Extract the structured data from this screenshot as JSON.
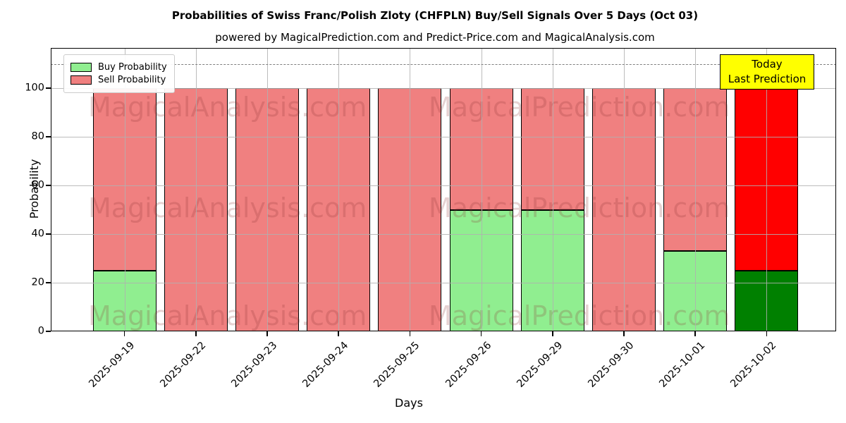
{
  "title": "Probabilities of Swiss Franc/Polish Zloty (CHFPLN) Buy/Sell Signals Over 5 Days (Oct 03)",
  "subtitle": "powered by MagicalPrediction.com and Predict-Price.com and MagicalAnalysis.com",
  "legend": {
    "buy_label": "Buy Probability",
    "sell_label": "Sell Probability"
  },
  "annotation": {
    "line1": "Today",
    "line2": "Last Prediction",
    "bg_color": "#ffff00"
  },
  "watermarks": {
    "left_text": "MagicalAnalysis.com",
    "right_text": "MagicalPrediction.com"
  },
  "colors": {
    "buy": "#90ee90",
    "sell": "#f08080",
    "buy_today": "#008000",
    "sell_today": "#ff0000",
    "grid": "#b0b0b0",
    "dashed_line": "#7f7f7f",
    "annotation_bg": "#ffff00"
  },
  "chart_data": {
    "type": "bar",
    "stacked": true,
    "title": "Probabilities of Swiss Franc/Polish Zloty (CHFPLN) Buy/Sell Signals Over 5 Days (Oct 03)",
    "xlabel": "Days",
    "ylabel": "Probability",
    "categories": [
      "2025-09-19",
      "2025-09-22",
      "2025-09-23",
      "2025-09-24",
      "2025-09-25",
      "2025-09-26",
      "2025-09-29",
      "2025-09-30",
      "2025-10-01",
      "2025-10-02"
    ],
    "series": [
      {
        "name": "Buy Probability",
        "color": "#90ee90",
        "today_color": "#008000",
        "values": [
          25,
          0,
          0,
          0,
          0,
          50,
          50,
          0,
          33,
          25
        ]
      },
      {
        "name": "Sell Probability",
        "color": "#f08080",
        "today_color": "#ff0000",
        "values": [
          75,
          100,
          100,
          100,
          100,
          50,
          50,
          100,
          67,
          75
        ]
      }
    ],
    "today_index": 9,
    "yticks": [
      0,
      20,
      40,
      60,
      80,
      100
    ],
    "ylim": [
      0,
      116.6
    ],
    "dashed_line_y": 110,
    "grid": true,
    "legend_position": "upper left"
  }
}
